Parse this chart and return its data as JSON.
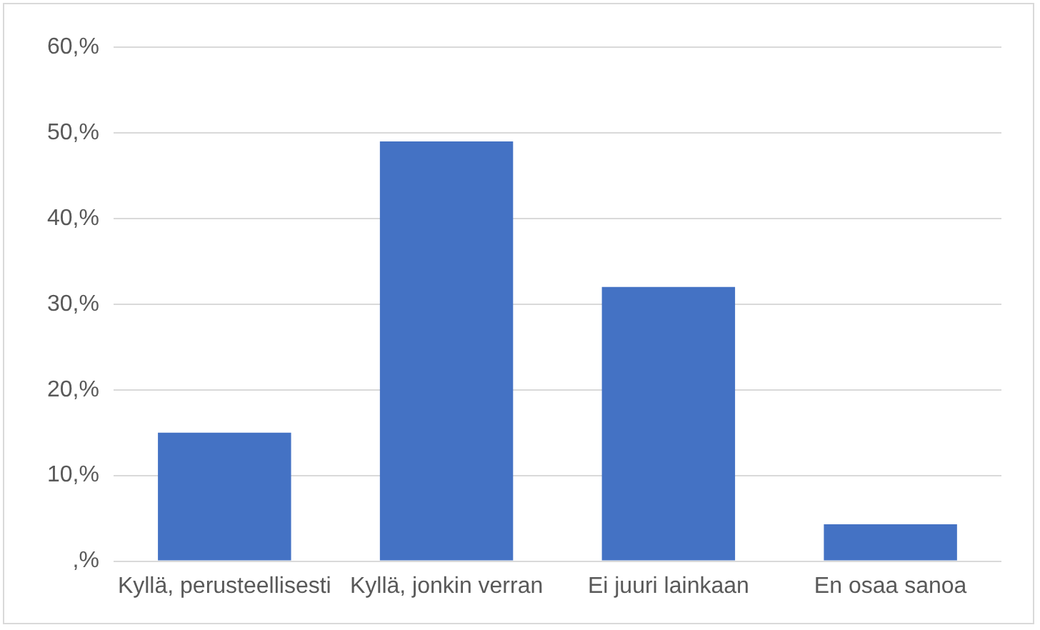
{
  "chart_data": {
    "type": "bar",
    "categories": [
      "Kyllä, perusteellisesti",
      "Kyllä, jonkin verran",
      "Ei juuri lainkaan",
      "En osaa sanoa"
    ],
    "values": [
      15,
      49,
      32,
      4.3
    ],
    "color": "#4472c4",
    "ylim": [
      0,
      60
    ],
    "yticks": [
      {
        "value": 0,
        "label": ",%"
      },
      {
        "value": 10,
        "label": "10,%"
      },
      {
        "value": 20,
        "label": "20,%"
      },
      {
        "value": 30,
        "label": "30,%"
      },
      {
        "value": 40,
        "label": "40,%"
      },
      {
        "value": 50,
        "label": "50,%"
      },
      {
        "value": 60,
        "label": "60,%"
      }
    ],
    "grid": "y",
    "legend": false
  }
}
